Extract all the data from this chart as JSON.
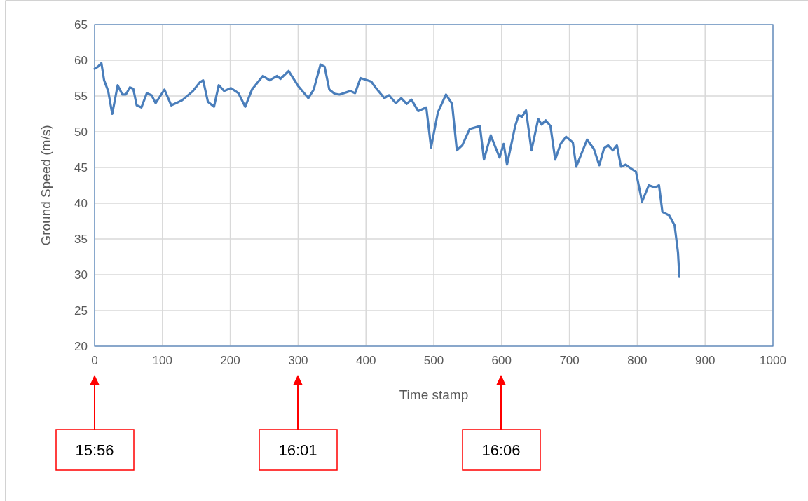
{
  "chart_data": {
    "type": "line",
    "xlabel": "Time stamp",
    "ylabel": "Ground Speed (m/s)",
    "xlim": [
      0,
      1000
    ],
    "xticks": [
      0,
      100,
      200,
      300,
      400,
      500,
      600,
      700,
      800,
      900,
      1000
    ],
    "ylim": [
      20,
      65
    ],
    "yticks": [
      20,
      25,
      30,
      35,
      40,
      45,
      50,
      55,
      60,
      65
    ],
    "grid": true,
    "series": [
      {
        "color": "#4a7ebb",
        "x": [
          0,
          5,
          10,
          14,
          20,
          26,
          34,
          41,
          46,
          52,
          57,
          62,
          69,
          77,
          84,
          90,
          103,
          113,
          129,
          145,
          155,
          160,
          167,
          176,
          183,
          191,
          201,
          212,
          222,
          232,
          248,
          258,
          269,
          274,
          286,
          300,
          315,
          323,
          333,
          339,
          346,
          354,
          361,
          377,
          384,
          392,
          408,
          414,
          427,
          434,
          444,
          452,
          460,
          467,
          477,
          489,
          496,
          506,
          518,
          527,
          534,
          542,
          553,
          568,
          574,
          584,
          591,
          597,
          603,
          608,
          620,
          625,
          630,
          636,
          644,
          654,
          659,
          665,
          672,
          679,
          687,
          695,
          705,
          710,
          721,
          726,
          736,
          744,
          751,
          757,
          764,
          770,
          776,
          783,
          790,
          798,
          807,
          817,
          826,
          832,
          837,
          847,
          855,
          860,
          862
        ],
        "values": [
          58.8,
          59.1,
          59.6,
          57.2,
          55.7,
          52.5,
          56.5,
          55.2,
          55.2,
          56.2,
          56.0,
          53.7,
          53.4,
          55.4,
          55.1,
          54.0,
          55.9,
          53.7,
          54.4,
          55.7,
          56.9,
          57.2,
          54.2,
          53.5,
          56.5,
          55.7,
          56.1,
          55.4,
          53.5,
          55.9,
          57.8,
          57.2,
          57.8,
          57.4,
          58.5,
          56.4,
          54.7,
          55.9,
          59.4,
          59.1,
          55.9,
          55.3,
          55.2,
          55.7,
          55.4,
          57.5,
          57.0,
          56.2,
          54.7,
          55.1,
          54.0,
          54.7,
          53.9,
          54.5,
          52.9,
          53.4,
          47.8,
          52.7,
          55.2,
          53.9,
          47.4,
          48.1,
          50.4,
          50.8,
          46.1,
          49.5,
          47.8,
          46.4,
          48.3,
          45.4,
          50.8,
          52.3,
          52.1,
          53.0,
          47.4,
          51.8,
          51.0,
          51.6,
          50.8,
          46.1,
          48.3,
          49.3,
          48.5,
          45.1,
          47.7,
          48.9,
          47.6,
          45.3,
          47.7,
          48.1,
          47.4,
          48.1,
          45.1,
          45.4,
          44.9,
          44.4,
          40.2,
          42.5,
          42.2,
          42.5,
          38.8,
          38.3,
          36.9,
          33.1,
          29.7
        ]
      }
    ],
    "annotations": [
      "15:56",
      "16:01",
      "16:06"
    ]
  }
}
